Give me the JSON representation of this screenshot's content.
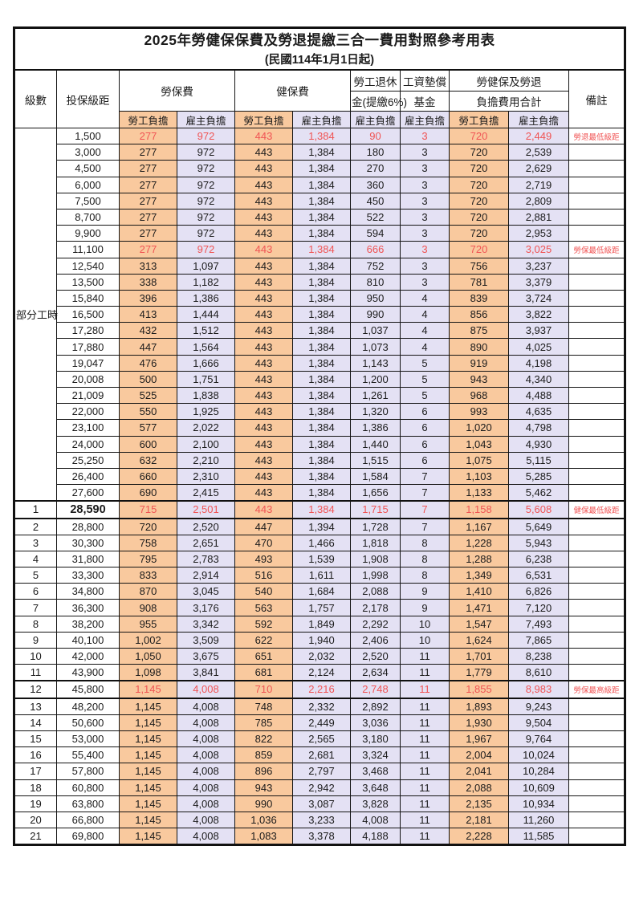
{
  "title": "2025年勞健保保費及勞退提繳三合一費用對照參考用表",
  "subtitle": "(民國114年1月1日起)",
  "colors": {
    "employee_fill": "#f9c99e",
    "employer_fill": "#e4e1f4",
    "red_text": "#f05454",
    "grid": "#141414"
  },
  "headers": {
    "level": "級數",
    "bracket": "投保級距",
    "labor_insurance": "勞保費",
    "health_insurance": "健保費",
    "pension_line1": "勞工退休",
    "pension_line2": "金(提繳6%)",
    "wage_fund_line1": "工資墊償",
    "wage_fund_line2": "基金",
    "total_line1": "勞健保及勞退",
    "total_line2": "負擔費用合計",
    "remark": "備註",
    "employee": "勞工負擔",
    "employer": "雇主負擔"
  },
  "part_time_label": "部分工時",
  "rows": [
    {
      "level": "",
      "bracket": "1,500",
      "li_emp": "277",
      "li_er": "972",
      "hi_emp": "443",
      "hi_er": "1,384",
      "pension": "90",
      "fund": "3",
      "tot_emp": "720",
      "tot_er": "2,449",
      "remark": "勞退最低級距",
      "red": true,
      "emph": false,
      "bold": false
    },
    {
      "level": "",
      "bracket": "3,000",
      "li_emp": "277",
      "li_er": "972",
      "hi_emp": "443",
      "hi_er": "1,384",
      "pension": "180",
      "fund": "3",
      "tot_emp": "720",
      "tot_er": "2,539",
      "remark": "",
      "red": false,
      "emph": false,
      "bold": false
    },
    {
      "level": "",
      "bracket": "4,500",
      "li_emp": "277",
      "li_er": "972",
      "hi_emp": "443",
      "hi_er": "1,384",
      "pension": "270",
      "fund": "3",
      "tot_emp": "720",
      "tot_er": "2,629",
      "remark": "",
      "red": false,
      "emph": false,
      "bold": false
    },
    {
      "level": "",
      "bracket": "6,000",
      "li_emp": "277",
      "li_er": "972",
      "hi_emp": "443",
      "hi_er": "1,384",
      "pension": "360",
      "fund": "3",
      "tot_emp": "720",
      "tot_er": "2,719",
      "remark": "",
      "red": false,
      "emph": false,
      "bold": false
    },
    {
      "level": "",
      "bracket": "7,500",
      "li_emp": "277",
      "li_er": "972",
      "hi_emp": "443",
      "hi_er": "1,384",
      "pension": "450",
      "fund": "3",
      "tot_emp": "720",
      "tot_er": "2,809",
      "remark": "",
      "red": false,
      "emph": false,
      "bold": false
    },
    {
      "level": "",
      "bracket": "8,700",
      "li_emp": "277",
      "li_er": "972",
      "hi_emp": "443",
      "hi_er": "1,384",
      "pension": "522",
      "fund": "3",
      "tot_emp": "720",
      "tot_er": "2,881",
      "remark": "",
      "red": false,
      "emph": false,
      "bold": false
    },
    {
      "level": "",
      "bracket": "9,900",
      "li_emp": "277",
      "li_er": "972",
      "hi_emp": "443",
      "hi_er": "1,384",
      "pension": "594",
      "fund": "3",
      "tot_emp": "720",
      "tot_er": "2,953",
      "remark": "",
      "red": false,
      "emph": false,
      "bold": false
    },
    {
      "level": "",
      "bracket": "11,100",
      "li_emp": "277",
      "li_er": "972",
      "hi_emp": "443",
      "hi_er": "1,384",
      "pension": "666",
      "fund": "3",
      "tot_emp": "720",
      "tot_er": "3,025",
      "remark": "勞保最低級距",
      "red": true,
      "emph": false,
      "bold": false
    },
    {
      "level": "",
      "bracket": "12,540",
      "li_emp": "313",
      "li_er": "1,097",
      "hi_emp": "443",
      "hi_er": "1,384",
      "pension": "752",
      "fund": "3",
      "tot_emp": "756",
      "tot_er": "3,237",
      "remark": "",
      "red": false,
      "emph": false,
      "bold": false
    },
    {
      "level": "",
      "bracket": "13,500",
      "li_emp": "338",
      "li_er": "1,182",
      "hi_emp": "443",
      "hi_er": "1,384",
      "pension": "810",
      "fund": "3",
      "tot_emp": "781",
      "tot_er": "3,379",
      "remark": "",
      "red": false,
      "emph": false,
      "bold": false
    },
    {
      "level": "",
      "bracket": "15,840",
      "li_emp": "396",
      "li_er": "1,386",
      "hi_emp": "443",
      "hi_er": "1,384",
      "pension": "950",
      "fund": "4",
      "tot_emp": "839",
      "tot_er": "3,724",
      "remark": "",
      "red": false,
      "emph": false,
      "bold": false
    },
    {
      "level": "",
      "bracket": "16,500",
      "li_emp": "413",
      "li_er": "1,444",
      "hi_emp": "443",
      "hi_er": "1,384",
      "pension": "990",
      "fund": "4",
      "tot_emp": "856",
      "tot_er": "3,822",
      "remark": "",
      "red": false,
      "emph": false,
      "bold": false
    },
    {
      "level": "",
      "bracket": "17,280",
      "li_emp": "432",
      "li_er": "1,512",
      "hi_emp": "443",
      "hi_er": "1,384",
      "pension": "1,037",
      "fund": "4",
      "tot_emp": "875",
      "tot_er": "3,937",
      "remark": "",
      "red": false,
      "emph": false,
      "bold": false
    },
    {
      "level": "",
      "bracket": "17,880",
      "li_emp": "447",
      "li_er": "1,564",
      "hi_emp": "443",
      "hi_er": "1,384",
      "pension": "1,073",
      "fund": "4",
      "tot_emp": "890",
      "tot_er": "4,025",
      "remark": "",
      "red": false,
      "emph": false,
      "bold": false
    },
    {
      "level": "",
      "bracket": "19,047",
      "li_emp": "476",
      "li_er": "1,666",
      "hi_emp": "443",
      "hi_er": "1,384",
      "pension": "1,143",
      "fund": "5",
      "tot_emp": "919",
      "tot_er": "4,198",
      "remark": "",
      "red": false,
      "emph": false,
      "bold": false
    },
    {
      "level": "",
      "bracket": "20,008",
      "li_emp": "500",
      "li_er": "1,751",
      "hi_emp": "443",
      "hi_er": "1,384",
      "pension": "1,200",
      "fund": "5",
      "tot_emp": "943",
      "tot_er": "4,340",
      "remark": "",
      "red": false,
      "emph": false,
      "bold": false
    },
    {
      "level": "",
      "bracket": "21,009",
      "li_emp": "525",
      "li_er": "1,838",
      "hi_emp": "443",
      "hi_er": "1,384",
      "pension": "1,261",
      "fund": "5",
      "tot_emp": "968",
      "tot_er": "4,488",
      "remark": "",
      "red": false,
      "emph": false,
      "bold": false
    },
    {
      "level": "",
      "bracket": "22,000",
      "li_emp": "550",
      "li_er": "1,925",
      "hi_emp": "443",
      "hi_er": "1,384",
      "pension": "1,320",
      "fund": "6",
      "tot_emp": "993",
      "tot_er": "4,635",
      "remark": "",
      "red": false,
      "emph": false,
      "bold": false
    },
    {
      "level": "",
      "bracket": "23,100",
      "li_emp": "577",
      "li_er": "2,022",
      "hi_emp": "443",
      "hi_er": "1,384",
      "pension": "1,386",
      "fund": "6",
      "tot_emp": "1,020",
      "tot_er": "4,798",
      "remark": "",
      "red": false,
      "emph": false,
      "bold": false
    },
    {
      "level": "",
      "bracket": "24,000",
      "li_emp": "600",
      "li_er": "2,100",
      "hi_emp": "443",
      "hi_er": "1,384",
      "pension": "1,440",
      "fund": "6",
      "tot_emp": "1,043",
      "tot_er": "4,930",
      "remark": "",
      "red": false,
      "emph": false,
      "bold": false
    },
    {
      "level": "",
      "bracket": "25,250",
      "li_emp": "632",
      "li_er": "2,210",
      "hi_emp": "443",
      "hi_er": "1,384",
      "pension": "1,515",
      "fund": "6",
      "tot_emp": "1,075",
      "tot_er": "5,115",
      "remark": "",
      "red": false,
      "emph": false,
      "bold": false
    },
    {
      "level": "",
      "bracket": "26,400",
      "li_emp": "660",
      "li_er": "2,310",
      "hi_emp": "443",
      "hi_er": "1,384",
      "pension": "1,584",
      "fund": "7",
      "tot_emp": "1,103",
      "tot_er": "5,285",
      "remark": "",
      "red": false,
      "emph": false,
      "bold": false
    },
    {
      "level": "",
      "bracket": "27,600",
      "li_emp": "690",
      "li_er": "2,415",
      "hi_emp": "443",
      "hi_er": "1,384",
      "pension": "1,656",
      "fund": "7",
      "tot_emp": "1,133",
      "tot_er": "5,462",
      "remark": "",
      "red": false,
      "emph": false,
      "bold": false
    },
    {
      "level": "1",
      "bracket": "28,590",
      "li_emp": "715",
      "li_er": "2,501",
      "hi_emp": "443",
      "hi_er": "1,384",
      "pension": "1,715",
      "fund": "7",
      "tot_emp": "1,158",
      "tot_er": "5,608",
      "remark": "健保最低級距",
      "red": true,
      "emph": true,
      "bold": true
    },
    {
      "level": "2",
      "bracket": "28,800",
      "li_emp": "720",
      "li_er": "2,520",
      "hi_emp": "447",
      "hi_er": "1,394",
      "pension": "1,728",
      "fund": "7",
      "tot_emp": "1,167",
      "tot_er": "5,649",
      "remark": "",
      "red": false,
      "emph": false,
      "bold": false
    },
    {
      "level": "3",
      "bracket": "30,300",
      "li_emp": "758",
      "li_er": "2,651",
      "hi_emp": "470",
      "hi_er": "1,466",
      "pension": "1,818",
      "fund": "8",
      "tot_emp": "1,228",
      "tot_er": "5,943",
      "remark": "",
      "red": false,
      "emph": false,
      "bold": false
    },
    {
      "level": "4",
      "bracket": "31,800",
      "li_emp": "795",
      "li_er": "2,783",
      "hi_emp": "493",
      "hi_er": "1,539",
      "pension": "1,908",
      "fund": "8",
      "tot_emp": "1,288",
      "tot_er": "6,238",
      "remark": "",
      "red": false,
      "emph": false,
      "bold": false
    },
    {
      "level": "5",
      "bracket": "33,300",
      "li_emp": "833",
      "li_er": "2,914",
      "hi_emp": "516",
      "hi_er": "1,611",
      "pension": "1,998",
      "fund": "8",
      "tot_emp": "1,349",
      "tot_er": "6,531",
      "remark": "",
      "red": false,
      "emph": false,
      "bold": false
    },
    {
      "level": "6",
      "bracket": "34,800",
      "li_emp": "870",
      "li_er": "3,045",
      "hi_emp": "540",
      "hi_er": "1,684",
      "pension": "2,088",
      "fund": "9",
      "tot_emp": "1,410",
      "tot_er": "6,826",
      "remark": "",
      "red": false,
      "emph": false,
      "bold": false
    },
    {
      "level": "7",
      "bracket": "36,300",
      "li_emp": "908",
      "li_er": "3,176",
      "hi_emp": "563",
      "hi_er": "1,757",
      "pension": "2,178",
      "fund": "9",
      "tot_emp": "1,471",
      "tot_er": "7,120",
      "remark": "",
      "red": false,
      "emph": false,
      "bold": false
    },
    {
      "level": "8",
      "bracket": "38,200",
      "li_emp": "955",
      "li_er": "3,342",
      "hi_emp": "592",
      "hi_er": "1,849",
      "pension": "2,292",
      "fund": "10",
      "tot_emp": "1,547",
      "tot_er": "7,493",
      "remark": "",
      "red": false,
      "emph": false,
      "bold": false
    },
    {
      "level": "9",
      "bracket": "40,100",
      "li_emp": "1,002",
      "li_er": "3,509",
      "hi_emp": "622",
      "hi_er": "1,940",
      "pension": "2,406",
      "fund": "10",
      "tot_emp": "1,624",
      "tot_er": "7,865",
      "remark": "",
      "red": false,
      "emph": false,
      "bold": false
    },
    {
      "level": "10",
      "bracket": "42,000",
      "li_emp": "1,050",
      "li_er": "3,675",
      "hi_emp": "651",
      "hi_er": "2,032",
      "pension": "2,520",
      "fund": "11",
      "tot_emp": "1,701",
      "tot_er": "8,238",
      "remark": "",
      "red": false,
      "emph": false,
      "bold": false
    },
    {
      "level": "11",
      "bracket": "43,900",
      "li_emp": "1,098",
      "li_er": "3,841",
      "hi_emp": "681",
      "hi_er": "2,124",
      "pension": "2,634",
      "fund": "11",
      "tot_emp": "1,779",
      "tot_er": "8,610",
      "remark": "",
      "red": false,
      "emph": false,
      "bold": false
    },
    {
      "level": "12",
      "bracket": "45,800",
      "li_emp": "1,145",
      "li_er": "4,008",
      "hi_emp": "710",
      "hi_er": "2,216",
      "pension": "2,748",
      "fund": "11",
      "tot_emp": "1,855",
      "tot_er": "8,983",
      "remark": "勞保最高級距",
      "red": true,
      "emph": true,
      "bold": false
    },
    {
      "level": "13",
      "bracket": "48,200",
      "li_emp": "1,145",
      "li_er": "4,008",
      "hi_emp": "748",
      "hi_er": "2,332",
      "pension": "2,892",
      "fund": "11",
      "tot_emp": "1,893",
      "tot_er": "9,243",
      "remark": "",
      "red": false,
      "emph": false,
      "bold": false
    },
    {
      "level": "14",
      "bracket": "50,600",
      "li_emp": "1,145",
      "li_er": "4,008",
      "hi_emp": "785",
      "hi_er": "2,449",
      "pension": "3,036",
      "fund": "11",
      "tot_emp": "1,930",
      "tot_er": "9,504",
      "remark": "",
      "red": false,
      "emph": false,
      "bold": false
    },
    {
      "level": "15",
      "bracket": "53,000",
      "li_emp": "1,145",
      "li_er": "4,008",
      "hi_emp": "822",
      "hi_er": "2,565",
      "pension": "3,180",
      "fund": "11",
      "tot_emp": "1,967",
      "tot_er": "9,764",
      "remark": "",
      "red": false,
      "emph": false,
      "bold": false
    },
    {
      "level": "16",
      "bracket": "55,400",
      "li_emp": "1,145",
      "li_er": "4,008",
      "hi_emp": "859",
      "hi_er": "2,681",
      "pension": "3,324",
      "fund": "11",
      "tot_emp": "2,004",
      "tot_er": "10,024",
      "remark": "",
      "red": false,
      "emph": false,
      "bold": false
    },
    {
      "level": "17",
      "bracket": "57,800",
      "li_emp": "1,145",
      "li_er": "4,008",
      "hi_emp": "896",
      "hi_er": "2,797",
      "pension": "3,468",
      "fund": "11",
      "tot_emp": "2,041",
      "tot_er": "10,284",
      "remark": "",
      "red": false,
      "emph": false,
      "bold": false
    },
    {
      "level": "18",
      "bracket": "60,800",
      "li_emp": "1,145",
      "li_er": "4,008",
      "hi_emp": "943",
      "hi_er": "2,942",
      "pension": "3,648",
      "fund": "11",
      "tot_emp": "2,088",
      "tot_er": "10,609",
      "remark": "",
      "red": false,
      "emph": false,
      "bold": false
    },
    {
      "level": "19",
      "bracket": "63,800",
      "li_emp": "1,145",
      "li_er": "4,008",
      "hi_emp": "990",
      "hi_er": "3,087",
      "pension": "3,828",
      "fund": "11",
      "tot_emp": "2,135",
      "tot_er": "10,934",
      "remark": "",
      "red": false,
      "emph": false,
      "bold": false
    },
    {
      "level": "20",
      "bracket": "66,800",
      "li_emp": "1,145",
      "li_er": "4,008",
      "hi_emp": "1,036",
      "hi_er": "3,233",
      "pension": "4,008",
      "fund": "11",
      "tot_emp": "2,181",
      "tot_er": "11,260",
      "remark": "",
      "red": false,
      "emph": false,
      "bold": false
    },
    {
      "level": "21",
      "bracket": "69,800",
      "li_emp": "1,145",
      "li_er": "4,008",
      "hi_emp": "1,083",
      "hi_er": "3,378",
      "pension": "4,188",
      "fund": "11",
      "tot_emp": "2,228",
      "tot_er": "11,585",
      "remark": "",
      "red": false,
      "emph": false,
      "bold": false
    }
  ]
}
